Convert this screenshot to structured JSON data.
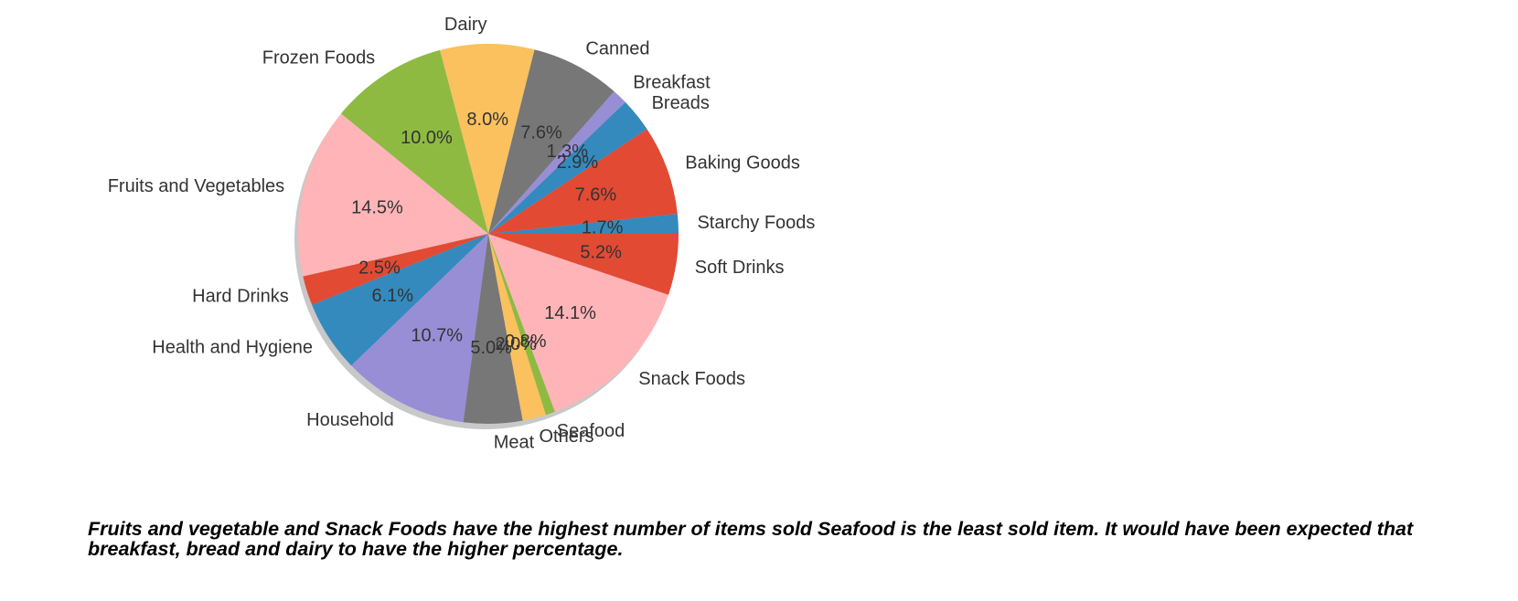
{
  "chart_data": {
    "type": "pie",
    "categories": [
      "Starchy Foods",
      "Baking Goods",
      "Breads",
      "Breakfast",
      "Canned",
      "Dairy",
      "Frozen Foods",
      "Fruits and Vegetables",
      "Hard Drinks",
      "Health and Hygiene",
      "Household",
      "Meat",
      "Others",
      "Seafood",
      "Snack Foods",
      "Soft Drinks"
    ],
    "display_labels": [
      "Starchy Foods",
      "Baking Goods",
      "Breads",
      "Breakfast",
      "Canned",
      "Dairy",
      "Frozen Foods",
      "Fruits and Vegetables",
      "Hard Drinks",
      "Health and Hygiene",
      "Household",
      "Meat",
      "Others",
      "Seafood",
      "Snack Foods",
      "Soft Drinks"
    ],
    "values": [
      1.7,
      7.6,
      2.9,
      1.3,
      7.6,
      8.0,
      10.0,
      14.5,
      2.5,
      6.1,
      10.7,
      5.0,
      2.0,
      0.8,
      14.1,
      5.2
    ],
    "pct_labels": [
      "1.7%",
      "7.6%",
      "2.9%",
      "1.3%",
      "7.6%",
      "8.0%",
      "10.0%",
      "14.5%",
      "2.5%",
      "6.1%",
      "10.7%",
      "5.0%",
      "2.0%",
      "0.8%",
      "14.1%",
      "5.2%"
    ],
    "colors": [
      "#348ABD",
      "#E24A33",
      "#348ABD",
      "#988ED5",
      "#777777",
      "#FBC15E",
      "#8EBA42",
      "#FFB5B8",
      "#E24A33",
      "#348ABD",
      "#988ED5",
      "#777777",
      "#FBC15E",
      "#8EBA42",
      "#FFB5B8",
      "#E24A33"
    ],
    "start_angle_deg": 0,
    "direction": "counterclockwise",
    "shadow": true,
    "title": "",
    "legend": "none"
  },
  "caption": "Fruits and vegetable and Snack Foods have the highest number of items sold Seafood is the least sold item. It would have been expected that breakfast, bread and dairy to have the higher percentage."
}
